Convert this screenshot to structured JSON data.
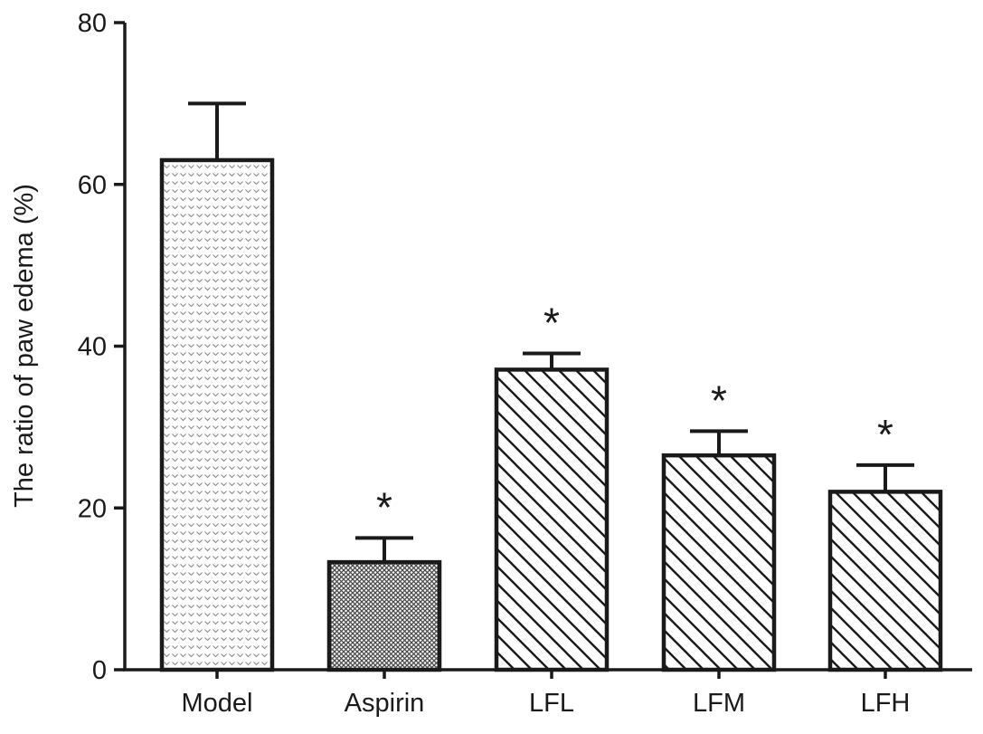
{
  "chart_data": {
    "type": "bar",
    "title": "",
    "xlabel": "",
    "ylabel": "The ratio of paw edema (%)",
    "ylim": [
      0,
      80
    ],
    "yticks": [
      0,
      20,
      40,
      60,
      80
    ],
    "grid": false,
    "legend": "none",
    "categories": [
      "Model",
      "Aspirin",
      "LFL",
      "LFM",
      "LFH"
    ],
    "values": [
      63,
      13.3,
      37.1,
      26.5,
      22
    ],
    "error_upper": [
      7,
      3,
      2,
      3,
      3.3
    ],
    "significance": [
      "",
      "*",
      "*",
      "*",
      "*"
    ],
    "fill_patterns": [
      "chevron-dots",
      "fine-crosshatch",
      "diagonal-hatch",
      "diagonal-hatch",
      "diagonal-hatch"
    ],
    "colors": {
      "bar_stroke": "#1a1a1a",
      "text": "#1a1a1a",
      "background": "#ffffff"
    }
  }
}
